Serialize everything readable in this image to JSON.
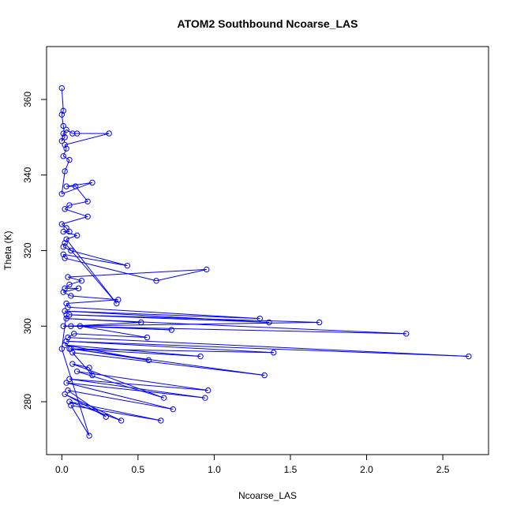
{
  "chart_data": {
    "type": "line",
    "title": "ATOM2 Southbound Ncoarse_LAS",
    "xlabel": "Ncoarse_LAS",
    "ylabel": "Theta (K)",
    "xlim": [
      -0.1,
      2.8
    ],
    "ylim": [
      266,
      374
    ],
    "x_ticks": [
      0.0,
      0.5,
      1.0,
      1.5,
      2.0,
      2.5
    ],
    "x_tick_labels": [
      "0.0",
      "0.5",
      "1.0",
      "1.5",
      "2.0",
      "2.5"
    ],
    "y_ticks": [
      280,
      300,
      320,
      340,
      360
    ],
    "y_tick_labels": [
      "280",
      "300",
      "320",
      "340",
      "360"
    ],
    "grid": false,
    "line_color": "#0000ff",
    "marker": "open-circle",
    "series": [
      {
        "x": [
          0.0,
          0.01,
          0.0,
          0.01,
          0.02,
          0.0,
          0.01,
          0.03,
          0.07,
          0.1,
          0.31,
          0.02,
          0.03,
          0.01,
          0.05,
          0.02,
          0.0,
          0.2,
          0.03,
          0.09,
          0.17,
          0.05,
          0.02,
          0.17,
          0.0,
          0.03,
          0.05,
          0.01,
          0.1,
          0.03,
          0.36,
          0.02,
          0.01,
          0.06,
          0.43,
          0.01,
          0.02,
          0.62,
          0.95,
          0.04,
          0.13,
          0.05,
          0.02,
          0.11,
          0.01,
          0.06,
          0.37,
          0.03,
          0.04,
          1.3,
          0.02,
          1.36,
          0.05,
          1.69,
          0.01,
          2.26,
          0.03,
          0.52,
          0.06,
          0.72,
          0.12,
          0.56,
          0.08,
          0.04,
          2.67,
          0.03,
          1.39,
          0.05,
          0.91,
          0.02,
          0.57,
          0.06,
          1.33,
          0.07,
          0.2,
          0.18,
          0.07,
          0.67,
          0.1,
          0.96,
          0.05,
          0.94,
          0.03,
          0.73,
          0.04,
          0.29,
          0.02,
          0.39,
          0.05,
          0.65,
          0.06,
          0.18,
          0.0,
          0.03
        ],
        "y": [
          363,
          357,
          356,
          353,
          350,
          349,
          351,
          352,
          351,
          351,
          351,
          348,
          347,
          345,
          344,
          341,
          335,
          338,
          337,
          337,
          333,
          332,
          331,
          329,
          327,
          326,
          325,
          325,
          324,
          323,
          306,
          322,
          321,
          320,
          316,
          319,
          318,
          312,
          315,
          313,
          312,
          311,
          310,
          310,
          309,
          308,
          307,
          306,
          305,
          302,
          304,
          301,
          303,
          301,
          300,
          298,
          302,
          301,
          300,
          299,
          300,
          297,
          298,
          297,
          292,
          296,
          293,
          294,
          292,
          295,
          291,
          294,
          287,
          293,
          287,
          289,
          290,
          281,
          288,
          283,
          286,
          281,
          285,
          278,
          283,
          276,
          282,
          275,
          280,
          275,
          279,
          271,
          294,
          303
        ]
      }
    ]
  }
}
